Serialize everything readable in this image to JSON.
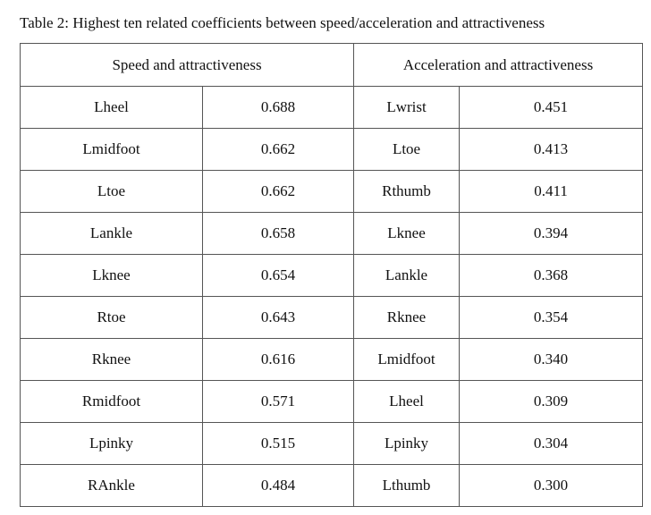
{
  "caption": "Table 2: Highest ten related coefficients between speed/acceleration and attractiveness",
  "table": {
    "headers": [
      "Speed and attractiveness",
      "Acceleration and attractiveness"
    ],
    "rows": [
      [
        "Lheel",
        "0.688",
        "Lwrist",
        "0.451"
      ],
      [
        "Lmidfoot",
        "0.662",
        "Ltoe",
        "0.413"
      ],
      [
        "Ltoe",
        "0.662",
        "Rthumb",
        "0.411"
      ],
      [
        "Lankle",
        "0.658",
        "Lknee",
        "0.394"
      ],
      [
        "Lknee",
        "0.654",
        "Lankle",
        "0.368"
      ],
      [
        "Rtoe",
        "0.643",
        "Rknee",
        "0.354"
      ],
      [
        "Rknee",
        "0.616",
        "Lmidfoot",
        "0.340"
      ],
      [
        "Rmidfoot",
        "0.571",
        "Lheel",
        "0.309"
      ],
      [
        "Lpinky",
        "0.515",
        "Lpinky",
        "0.304"
      ],
      [
        "RAnkle",
        "0.484",
        "Lthumb",
        "0.300"
      ]
    ]
  }
}
